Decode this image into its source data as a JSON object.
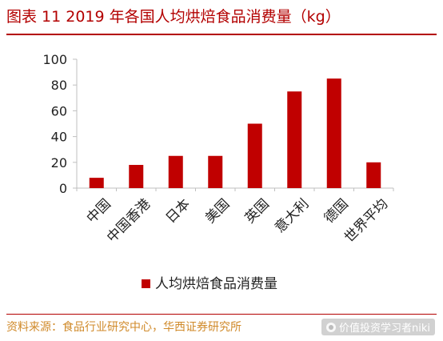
{
  "figure": {
    "title": "图表 11    2019 年各国人均烘焙食品消费量（kg）",
    "source": "资料来源：食品行业研究中心，华西证券研究所",
    "watermark": "价值投资学习者niki"
  },
  "colors": {
    "bar": "#c00000",
    "title": "#b30000",
    "source": "#d08a2a",
    "axis": "#bfbfbf"
  },
  "chart_data": {
    "type": "bar",
    "categories": [
      "中国",
      "中国香港",
      "日本",
      "美国",
      "英国",
      "意大利",
      "德国",
      "世界平均"
    ],
    "series": [
      {
        "name": "人均烘焙食品消费量",
        "values": [
          8,
          18,
          25,
          25,
          50,
          75,
          85,
          20
        ]
      }
    ],
    "ylim": [
      0,
      100
    ],
    "yticks": [
      0,
      20,
      40,
      60,
      80,
      100
    ],
    "grid": false,
    "legend": "bottom"
  }
}
